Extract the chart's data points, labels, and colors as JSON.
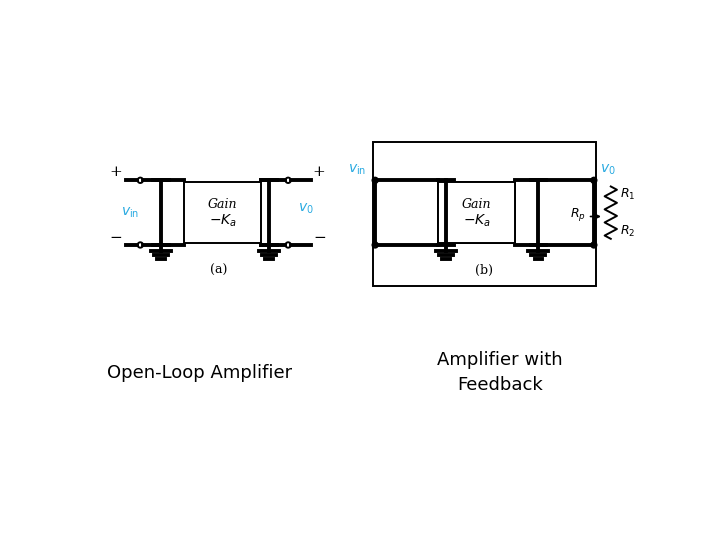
{
  "bg_color": "#ffffff",
  "line_color": "#000000",
  "cyan_color": "#29aae1",
  "lw_thick": 2.8,
  "lw_med": 1.8,
  "lw_thin": 1.4,
  "title_left": "Open-Loop Amplifier",
  "title_right": "Amplifier with\nFeedback",
  "label_a": "(a)",
  "label_b": "(b)"
}
